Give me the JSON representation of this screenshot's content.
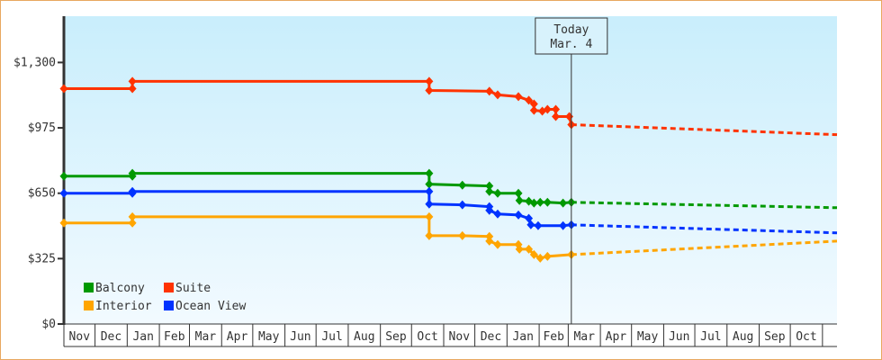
{
  "chart_data": {
    "type": "line",
    "title": "",
    "xlabel": "",
    "ylabel": "",
    "ylim": [
      0,
      1530
    ],
    "xlim": [
      "2023-11-01",
      "2025-11-15"
    ],
    "grid": false,
    "legend_placement": "bottom-left",
    "y_ticks": [
      "$0",
      "$325",
      "$650",
      "$975",
      "$1,300"
    ],
    "y_tick_values": [
      0,
      325,
      650,
      975,
      1300
    ],
    "x_ticks": [
      {
        "label": "Nov",
        "start": "2023-11-01"
      },
      {
        "label": "Dec",
        "start": "2023-12-01"
      },
      {
        "label": "Jan",
        "start": "2024-01-01"
      },
      {
        "label": "Feb",
        "start": "2024-02-01"
      },
      {
        "label": "Mar",
        "start": "2024-03-01"
      },
      {
        "label": "Apr",
        "start": "2024-04-01"
      },
      {
        "label": "May",
        "start": "2024-05-01"
      },
      {
        "label": "Jun",
        "start": "2024-06-01"
      },
      {
        "label": "Jul",
        "start": "2024-07-01"
      },
      {
        "label": "Aug",
        "start": "2024-08-01"
      },
      {
        "label": "Sep",
        "start": "2024-09-01"
      },
      {
        "label": "Oct",
        "start": "2024-10-01"
      },
      {
        "label": "Nov",
        "start": "2024-11-01"
      },
      {
        "label": "Dec",
        "start": "2024-12-01"
      },
      {
        "label": "Jan",
        "start": "2025-01-01"
      },
      {
        "label": "Feb",
        "start": "2025-02-01"
      },
      {
        "label": "Mar",
        "start": "2025-03-01"
      },
      {
        "label": "Apr",
        "start": "2025-04-01"
      },
      {
        "label": "May",
        "start": "2025-05-01"
      },
      {
        "label": "Jun",
        "start": "2025-06-01"
      },
      {
        "label": "Jul",
        "start": "2025-07-01"
      },
      {
        "label": "Aug",
        "start": "2025-08-01"
      },
      {
        "label": "Sep",
        "start": "2025-09-01"
      },
      {
        "label": "Oct",
        "start": "2025-10-01"
      },
      {
        "label": "",
        "start": "2025-11-01"
      }
    ],
    "today": {
      "line1": "Today",
      "line2": "Mar. 4",
      "date": "2025-03-04"
    },
    "series": [
      {
        "name": "Suite",
        "color": "#ff3300",
        "points": [
          [
            "2023-11-01",
            1170
          ],
          [
            "2024-01-06",
            1170
          ],
          [
            "2024-01-06",
            1206
          ],
          [
            "2024-10-18",
            1206
          ],
          [
            "2024-10-18",
            1161
          ],
          [
            "2024-12-15",
            1157
          ],
          [
            "2024-12-23",
            1139
          ],
          [
            "2025-01-12",
            1130
          ],
          [
            "2025-01-22",
            1112
          ],
          [
            "2025-01-27",
            1094
          ],
          [
            "2025-01-27",
            1062
          ],
          [
            "2025-02-04",
            1058
          ],
          [
            "2025-02-09",
            1067
          ],
          [
            "2025-02-17",
            1067
          ],
          [
            "2025-02-17",
            1031
          ],
          [
            "2025-03-02",
            1031
          ],
          [
            "2025-03-04",
            991
          ]
        ],
        "forecast": [
          [
            "2025-03-04",
            991
          ],
          [
            "2025-11-15",
            941
          ]
        ]
      },
      {
        "name": "Balcony",
        "color": "#009900",
        "points": [
          [
            "2023-11-01",
            735
          ],
          [
            "2024-01-06",
            735
          ],
          [
            "2024-01-06",
            749
          ],
          [
            "2024-10-18",
            749
          ],
          [
            "2024-10-18",
            695
          ],
          [
            "2024-11-19",
            690
          ],
          [
            "2024-12-15",
            686
          ],
          [
            "2024-12-15",
            659
          ],
          [
            "2024-12-23",
            650
          ],
          [
            "2025-01-12",
            650
          ],
          [
            "2025-01-13",
            614
          ],
          [
            "2025-01-22",
            610
          ],
          [
            "2025-01-27",
            601
          ],
          [
            "2025-02-02",
            605
          ],
          [
            "2025-02-09",
            605
          ],
          [
            "2025-02-24",
            601
          ],
          [
            "2025-03-04",
            605
          ]
        ],
        "forecast": [
          [
            "2025-03-04",
            605
          ],
          [
            "2025-11-15",
            578
          ]
        ]
      },
      {
        "name": "Ocean View",
        "color": "#0033ff",
        "points": [
          [
            "2023-11-01",
            650
          ],
          [
            "2024-01-06",
            650
          ],
          [
            "2024-01-06",
            659
          ],
          [
            "2024-10-18",
            659
          ],
          [
            "2024-10-18",
            596
          ],
          [
            "2024-11-19",
            592
          ],
          [
            "2024-12-15",
            583
          ],
          [
            "2024-12-15",
            565
          ],
          [
            "2024-12-23",
            547
          ],
          [
            "2025-01-12",
            542
          ],
          [
            "2025-01-22",
            525
          ],
          [
            "2025-01-24",
            493
          ],
          [
            "2025-01-31",
            489
          ],
          [
            "2025-02-24",
            489
          ],
          [
            "2025-03-04",
            493
          ]
        ],
        "forecast": [
          [
            "2025-03-04",
            493
          ],
          [
            "2025-11-15",
            453
          ]
        ]
      },
      {
        "name": "Interior",
        "color": "#ffa500",
        "points": [
          [
            "2023-11-01",
            502
          ],
          [
            "2024-01-06",
            502
          ],
          [
            "2024-01-06",
            533
          ],
          [
            "2024-10-18",
            533
          ],
          [
            "2024-10-18",
            439
          ],
          [
            "2024-11-19",
            439
          ],
          [
            "2024-12-15",
            435
          ],
          [
            "2024-12-15",
            412
          ],
          [
            "2024-12-23",
            395
          ],
          [
            "2025-01-12",
            395
          ],
          [
            "2025-01-13",
            372
          ],
          [
            "2025-01-22",
            372
          ],
          [
            "2025-01-27",
            345
          ],
          [
            "2025-02-02",
            327
          ],
          [
            "2025-02-09",
            336
          ],
          [
            "2025-03-04",
            345
          ]
        ],
        "forecast": [
          [
            "2025-03-04",
            345
          ],
          [
            "2025-11-15",
            412
          ]
        ]
      }
    ],
    "legend": [
      {
        "name": "Balcony",
        "color": "#009900"
      },
      {
        "name": "Suite",
        "color": "#ff3300"
      },
      {
        "name": "Interior",
        "color": "#ffa500"
      },
      {
        "name": "Ocean View",
        "color": "#0033ff"
      }
    ]
  }
}
